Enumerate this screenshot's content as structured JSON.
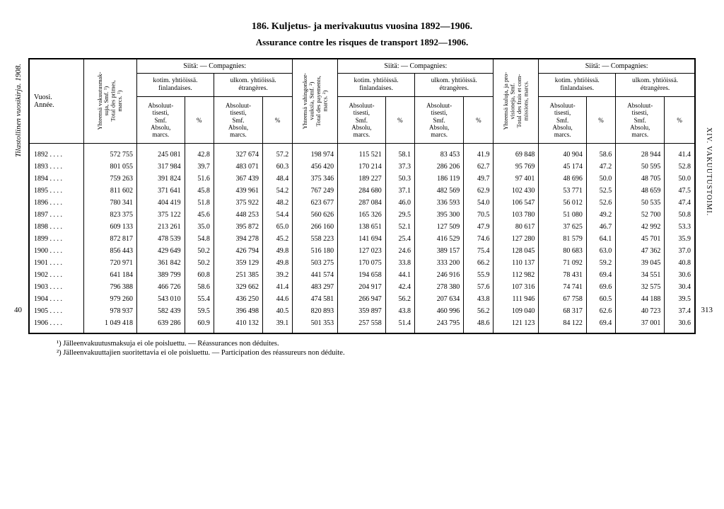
{
  "title": "186.  Kuljetus- ja merivakuutus vuosina 1892—1906.",
  "subtitle": "Assurance contre les risques de transport 1892—1906.",
  "margin_left": "Tilastollinen vuosikirja. 1908.",
  "margin_left_bottom": "40",
  "margin_right_top": "XIV.  VAKUUTUSTOIMI.",
  "margin_right_bottom": "313",
  "headers": {
    "year": "Vuosi.\nAnnée.",
    "total_primes": "Yhteensä vakuutusmak-\nsuja, Smf. ¹)\nTotal des primes,\nmarcs. ¹)",
    "siita": "Siitä: — Compagnies:",
    "kotim": "kotim. yhtiöissä.\nfinlandaises.",
    "ulkom": "ulkom. yhtiöissä.\nétrangères.",
    "abs": "Absoluut-\ntisesti,\nSmf.\nAbsolu,\nmarcs.",
    "pct": "%",
    "total_payments": "Yhteensä vahingonkor-\nvauksia, Smf. ²)\nTotal des payements,\nmarcs. ²)",
    "total_commissions": "Yhteensä kuluja, ja pro-\nvisioneja, Smf.\nTotal des frais et com-\nmissions, marcs."
  },
  "rows": [
    {
      "year": "1892 . . . .",
      "c1": "572 755",
      "c2": "245 081",
      "c3": "42.8",
      "c4": "327 674",
      "c5": "57.2",
      "c6": "198 974",
      "c7": "115 521",
      "c8": "58.1",
      "c9": "83 453",
      "c10": "41.9",
      "c11": "69 848",
      "c12": "40 904",
      "c13": "58.6",
      "c14": "28 944",
      "c15": "41.4"
    },
    {
      "year": "1893 . . . .",
      "c1": "801 055",
      "c2": "317 984",
      "c3": "39.7",
      "c4": "483 071",
      "c5": "60.3",
      "c6": "456 420",
      "c7": "170 214",
      "c8": "37.3",
      "c9": "286 206",
      "c10": "62.7",
      "c11": "95 769",
      "c12": "45 174",
      "c13": "47.2",
      "c14": "50 595",
      "c15": "52.8"
    },
    {
      "year": "1894 . . . .",
      "c1": "759 263",
      "c2": "391 824",
      "c3": "51.6",
      "c4": "367 439",
      "c5": "48.4",
      "c6": "375 346",
      "c7": "189 227",
      "c8": "50.3",
      "c9": "186 119",
      "c10": "49.7",
      "c11": "97 401",
      "c12": "48 696",
      "c13": "50.0",
      "c14": "48 705",
      "c15": "50.0"
    },
    {
      "year": "1895 . . . .",
      "c1": "811 602",
      "c2": "371 641",
      "c3": "45.8",
      "c4": "439 961",
      "c5": "54.2",
      "c6": "767 249",
      "c7": "284 680",
      "c8": "37.1",
      "c9": "482 569",
      "c10": "62.9",
      "c11": "102 430",
      "c12": "53 771",
      "c13": "52.5",
      "c14": "48 659",
      "c15": "47.5"
    },
    {
      "year": "1896 . . . .",
      "c1": "780 341",
      "c2": "404 419",
      "c3": "51.8",
      "c4": "375 922",
      "c5": "48.2",
      "c6": "623 677",
      "c7": "287 084",
      "c8": "46.0",
      "c9": "336 593",
      "c10": "54.0",
      "c11": "106 547",
      "c12": "56 012",
      "c13": "52.6",
      "c14": "50 535",
      "c15": "47.4"
    },
    {
      "year": "1897 . . . .",
      "c1": "823 375",
      "c2": "375 122",
      "c3": "45.6",
      "c4": "448 253",
      "c5": "54.4",
      "c6": "560 626",
      "c7": "165 326",
      "c8": "29.5",
      "c9": "395 300",
      "c10": "70.5",
      "c11": "103 780",
      "c12": "51 080",
      "c13": "49.2",
      "c14": "52 700",
      "c15": "50.8"
    },
    {
      "year": "1898 . . . .",
      "c1": "609 133",
      "c2": "213 261",
      "c3": "35.0",
      "c4": "395 872",
      "c5": "65.0",
      "c6": "266 160",
      "c7": "138 651",
      "c8": "52.1",
      "c9": "127 509",
      "c10": "47.9",
      "c11": "80 617",
      "c12": "37 625",
      "c13": "46.7",
      "c14": "42 992",
      "c15": "53.3"
    },
    {
      "year": "1899 . . . .",
      "c1": "872 817",
      "c2": "478 539",
      "c3": "54.8",
      "c4": "394 278",
      "c5": "45.2",
      "c6": "558 223",
      "c7": "141 694",
      "c8": "25.4",
      "c9": "416 529",
      "c10": "74.6",
      "c11": "127 280",
      "c12": "81 579",
      "c13": "64.1",
      "c14": "45 701",
      "c15": "35.9"
    },
    {
      "year": "1900 . . . .",
      "c1": "856 443",
      "c2": "429 649",
      "c3": "50.2",
      "c4": "426 794",
      "c5": "49.8",
      "c6": "516 180",
      "c7": "127 023",
      "c8": "24.6",
      "c9": "389 157",
      "c10": "75.4",
      "c11": "128 045",
      "c12": "80 683",
      "c13": "63.0",
      "c14": "47 362",
      "c15": "37.0"
    },
    {
      "year": "1901 . . . .",
      "c1": "720 971",
      "c2": "361 842",
      "c3": "50.2",
      "c4": "359 129",
      "c5": "49.8",
      "c6": "503 275",
      "c7": "170 075",
      "c8": "33.8",
      "c9": "333 200",
      "c10": "66.2",
      "c11": "110 137",
      "c12": "71 092",
      "c13": "59.2",
      "c14": "39 045",
      "c15": "40.8"
    },
    {
      "year": "1902 . . . .",
      "c1": "641 184",
      "c2": "389 799",
      "c3": "60.8",
      "c4": "251 385",
      "c5": "39.2",
      "c6": "441 574",
      "c7": "194 658",
      "c8": "44.1",
      "c9": "246 916",
      "c10": "55.9",
      "c11": "112 982",
      "c12": "78 431",
      "c13": "69.4",
      "c14": "34 551",
      "c15": "30.6"
    },
    {
      "year": "1903 . . . .",
      "c1": "796 388",
      "c2": "466 726",
      "c3": "58.6",
      "c4": "329 662",
      "c5": "41.4",
      "c6": "483 297",
      "c7": "204 917",
      "c8": "42.4",
      "c9": "278 380",
      "c10": "57.6",
      "c11": "107 316",
      "c12": "74 741",
      "c13": "69.6",
      "c14": "32 575",
      "c15": "30.4"
    },
    {
      "year": "1904 . . . .",
      "c1": "979 260",
      "c2": "543 010",
      "c3": "55.4",
      "c4": "436 250",
      "c5": "44.6",
      "c6": "474 581",
      "c7": "266 947",
      "c8": "56.2",
      "c9": "207 634",
      "c10": "43.8",
      "c11": "111 946",
      "c12": "67 758",
      "c13": "60.5",
      "c14": "44 188",
      "c15": "39.5"
    },
    {
      "year": "1905 . . . .",
      "c1": "978 937",
      "c2": "582 439",
      "c3": "59.5",
      "c4": "396 498",
      "c5": "40.5",
      "c6": "820 893",
      "c7": "359 897",
      "c8": "43.8",
      "c9": "460 996",
      "c10": "56.2",
      "c11": "109 040",
      "c12": "68 317",
      "c13": "62.6",
      "c14": "40 723",
      "c15": "37.4"
    },
    {
      "year": "1906 . . . .",
      "c1": "1 049 418",
      "c2": "639 286",
      "c3": "60.9",
      "c4": "410 132",
      "c5": "39.1",
      "c6": "501 353",
      "c7": "257 558",
      "c8": "51.4",
      "c9": "243 795",
      "c10": "48.6",
      "c11": "121 123",
      "c12": "84 122",
      "c13": "69.4",
      "c14": "37 001",
      "c15": "30.6"
    }
  ],
  "footnotes": {
    "f1": "¹) Jälleenvakuutusmaksuja ei ole poisluettu. — Réassurances non déduites.",
    "f2": "²) Jälleenvakuuttajien suoritettavia ei ole poisluettu. — Participation des réassureurs non déduite."
  }
}
